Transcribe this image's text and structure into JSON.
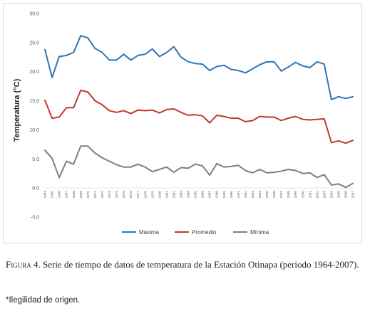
{
  "chart_data": {
    "type": "line",
    "title": "",
    "xlabel": "",
    "ylabel": "Temperatura (°C)",
    "ylim": [
      -5,
      30
    ],
    "yticks": [
      "-5.0",
      "0.0",
      "5.0",
      "10.0",
      "15.0",
      "20.0",
      "25.0",
      "30.0"
    ],
    "grid": "none",
    "legend_placement": "bottom",
    "categories": [
      "1964",
      "1965",
      "1966",
      "1967",
      "1968",
      "1969",
      "1970",
      "1971",
      "1972",
      "1973",
      "1974",
      "1975",
      "1976",
      "1977",
      "1978",
      "1979",
      "1980",
      "1981",
      "1982",
      "1983",
      "1984",
      "1985",
      "1986",
      "1987",
      "1988",
      "1989",
      "1990",
      "1991",
      "1992",
      "1993",
      "1994",
      "1995",
      "1996",
      "1997",
      "1998",
      "1999",
      "2000",
      "2001",
      "2002",
      "2003",
      "2004",
      "2005",
      "2006",
      "2007"
    ],
    "series": [
      {
        "name": "Máxima",
        "color": "#2e75b6",
        "values": [
          23.8,
          19.0,
          22.6,
          22.8,
          23.3,
          26.2,
          25.8,
          24.0,
          23.3,
          22.0,
          22.0,
          23.0,
          22.0,
          22.8,
          23.0,
          23.9,
          22.6,
          23.3,
          24.3,
          22.5,
          21.7,
          21.4,
          21.3,
          20.2,
          20.9,
          21.1,
          20.4,
          20.2,
          19.8,
          20.5,
          21.2,
          21.7,
          21.7,
          20.1,
          20.8,
          21.6,
          21.0,
          20.7,
          21.7,
          21.3,
          15.2,
          15.7,
          15.4,
          15.7
        ]
      },
      {
        "name": "Promedio",
        "color": "#c0392b",
        "values": [
          15.1,
          12.0,
          12.2,
          13.8,
          13.8,
          16.8,
          16.5,
          15.0,
          14.3,
          13.3,
          13.0,
          13.3,
          12.8,
          13.4,
          13.3,
          13.4,
          12.9,
          13.5,
          13.6,
          13.0,
          12.5,
          12.6,
          12.4,
          11.2,
          12.5,
          12.3,
          12.0,
          12.0,
          11.4,
          11.6,
          12.3,
          12.2,
          12.2,
          11.6,
          12.0,
          12.3,
          11.8,
          11.7,
          11.8,
          11.9,
          7.8,
          8.1,
          7.7,
          8.2
        ]
      },
      {
        "name": "Mínima",
        "color": "#7f7f7f",
        "values": [
          6.5,
          5.1,
          1.8,
          4.6,
          4.1,
          7.2,
          7.2,
          6.0,
          5.2,
          4.6,
          4.0,
          3.6,
          3.6,
          4.1,
          3.6,
          2.8,
          3.2,
          3.6,
          2.7,
          3.5,
          3.4,
          4.1,
          3.8,
          2.2,
          4.2,
          3.6,
          3.7,
          3.9,
          3.0,
          2.6,
          3.2,
          2.6,
          2.7,
          2.9,
          3.2,
          3.0,
          2.5,
          2.6,
          1.8,
          2.3,
          0.5,
          0.7,
          0.1,
          0.8
        ]
      }
    ]
  },
  "caption": {
    "label": "Figura 4.",
    "text": " Serie de tiempo de datos de temperatura de la Estación Otinapa (periodo 1964-2007)."
  },
  "note": "*Ilegilidad de origen."
}
